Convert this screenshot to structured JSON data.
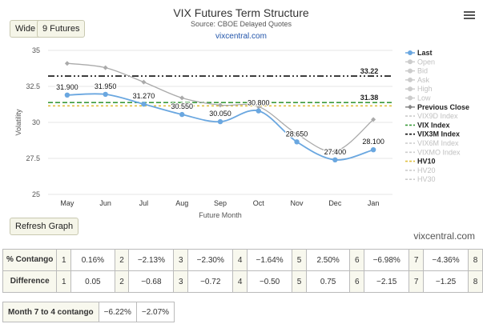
{
  "toolbar": {
    "wide_label": "Wide",
    "futures_label": "9 Futures",
    "refresh_label": "Refresh Graph"
  },
  "footer_site": "vixcentral.com",
  "chart_data": {
    "type": "line",
    "title": "VIX Futures Term Structure",
    "subtitle": "Source: CBOE Delayed Quotes",
    "link": "vixcentral.com",
    "xlabel": "Future Month",
    "ylabel": "Volatility",
    "ylim": [
      25,
      35
    ],
    "yticks": [
      "25",
      "27.5",
      "30",
      "32.5",
      "35"
    ],
    "categories": [
      "May",
      "Jun",
      "Jul",
      "Aug",
      "Sep",
      "Oct",
      "Nov",
      "Dec",
      "Jan"
    ],
    "grid": true,
    "legend_position": "right",
    "series": [
      {
        "name": "Last",
        "color": "#6aa7e0",
        "values": [
          31.9,
          31.95,
          31.27,
          30.55,
          30.05,
          30.8,
          28.65,
          27.4,
          28.1
        ],
        "labels": [
          "31.900",
          "31.950",
          "31.270",
          "30.550",
          "30.050",
          "30.800",
          "28.650",
          "27.400",
          "28.100"
        ]
      },
      {
        "name": "Previous Close",
        "color": "#aaaaaa",
        "values": [
          34.1,
          33.8,
          32.8,
          31.7,
          31.2,
          31.1,
          29.2,
          28.0,
          30.2
        ]
      }
    ],
    "reference_lines": [
      {
        "name": "VIX Index",
        "color": "#3a9a3a",
        "value": 31.38,
        "label": "31.38",
        "dash": "6,3"
      },
      {
        "name": "VIX3M Index",
        "color": "#111111",
        "value": 33.22,
        "label": "33.22",
        "dash": "8,3,2,3,2,3"
      },
      {
        "name": "HV10",
        "color": "#e0c040",
        "value": 31.15,
        "dash": "3,3"
      }
    ],
    "legend": [
      {
        "name": "Last",
        "color": "#6aa7e0",
        "active": true,
        "marker": "dot"
      },
      {
        "name": "Open",
        "color": "#cccccc",
        "active": false,
        "marker": "dot"
      },
      {
        "name": "Bid",
        "color": "#cccccc",
        "active": false,
        "marker": "dot"
      },
      {
        "name": "Ask",
        "color": "#cccccc",
        "active": false,
        "marker": "dot"
      },
      {
        "name": "High",
        "color": "#cccccc",
        "active": false,
        "marker": "dot"
      },
      {
        "name": "Low",
        "color": "#cccccc",
        "active": false,
        "marker": "dot"
      },
      {
        "name": "Previous Close",
        "color": "#888888",
        "active": true,
        "marker": "diamond"
      },
      {
        "name": "VIX9D Index",
        "color": "#cccccc",
        "active": false,
        "marker": "line"
      },
      {
        "name": "VIX Index",
        "color": "#3a9a3a",
        "active": true,
        "marker": "line"
      },
      {
        "name": "VIX3M Index",
        "color": "#111111",
        "active": true,
        "marker": "line"
      },
      {
        "name": "VIX6M Index",
        "color": "#cccccc",
        "active": false,
        "marker": "line"
      },
      {
        "name": "VIXMO Index",
        "color": "#cccccc",
        "active": false,
        "marker": "line"
      },
      {
        "name": "HV10",
        "color": "#e0c040",
        "active": true,
        "marker": "line"
      },
      {
        "name": "HV20",
        "color": "#cccccc",
        "active": false,
        "marker": "line"
      },
      {
        "name": "HV30",
        "color": "#cccccc",
        "active": false,
        "marker": "line"
      }
    ]
  },
  "stats": {
    "contango_label": "% Contango",
    "contango": [
      {
        "n": "1",
        "v": "0.16%"
      },
      {
        "n": "2",
        "v": "−2.13%"
      },
      {
        "n": "3",
        "v": "−2.30%"
      },
      {
        "n": "4",
        "v": "−1.64%"
      },
      {
        "n": "5",
        "v": "2.50%"
      },
      {
        "n": "6",
        "v": "−6.98%"
      },
      {
        "n": "7",
        "v": "−4.36%"
      }
    ],
    "contango_last": "8",
    "difference_label": "Difference",
    "difference": [
      {
        "n": "1",
        "v": "0.05"
      },
      {
        "n": "2",
        "v": "−0.68"
      },
      {
        "n": "3",
        "v": "−0.72"
      },
      {
        "n": "4",
        "v": "−0.50"
      },
      {
        "n": "5",
        "v": "0.75"
      },
      {
        "n": "6",
        "v": "−2.15"
      },
      {
        "n": "7",
        "v": "−1.25"
      }
    ],
    "difference_last": "8"
  },
  "month_contango": {
    "label": "Month 7 to 4 contango",
    "values": [
      "−6.22%",
      "−2.07%"
    ]
  }
}
